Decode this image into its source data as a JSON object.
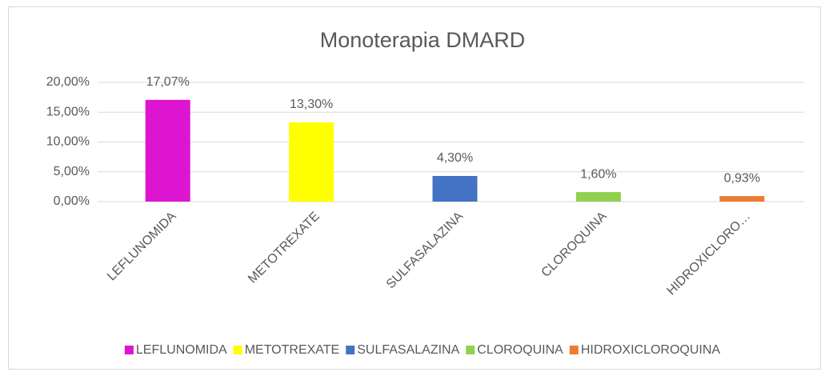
{
  "chart_data": {
    "type": "bar",
    "title": "Monoterapia DMARD",
    "categories": [
      "LEFLUNOMIDA",
      "METOTREXATE",
      "SULFASALAZINA",
      "CLOROQUINA",
      "HIDROXICLORO…"
    ],
    "legend": [
      "LEFLUNOMIDA",
      "METOTREXATE",
      "SULFASALAZINA",
      "CLOROQUINA",
      "HIDROXICLOROQUINA"
    ],
    "values": [
      17.07,
      13.3,
      4.3,
      1.6,
      0.93
    ],
    "value_labels": [
      "17,07%",
      "13,30%",
      "4,30%",
      "1,60%",
      "0,93%"
    ],
    "colors": [
      "#dd14d0",
      "#ffff00",
      "#4472c4",
      "#92d050",
      "#ed7d31"
    ],
    "ylim": [
      0,
      20
    ],
    "yticks": [
      {
        "value": 0,
        "label": "0,00%"
      },
      {
        "value": 5,
        "label": "5,00%"
      },
      {
        "value": 10,
        "label": "10,00%"
      },
      {
        "value": 15,
        "label": "15,00%"
      },
      {
        "value": 20,
        "label": "20,00%"
      }
    ],
    "grid": true,
    "legend_position": "bottom"
  }
}
